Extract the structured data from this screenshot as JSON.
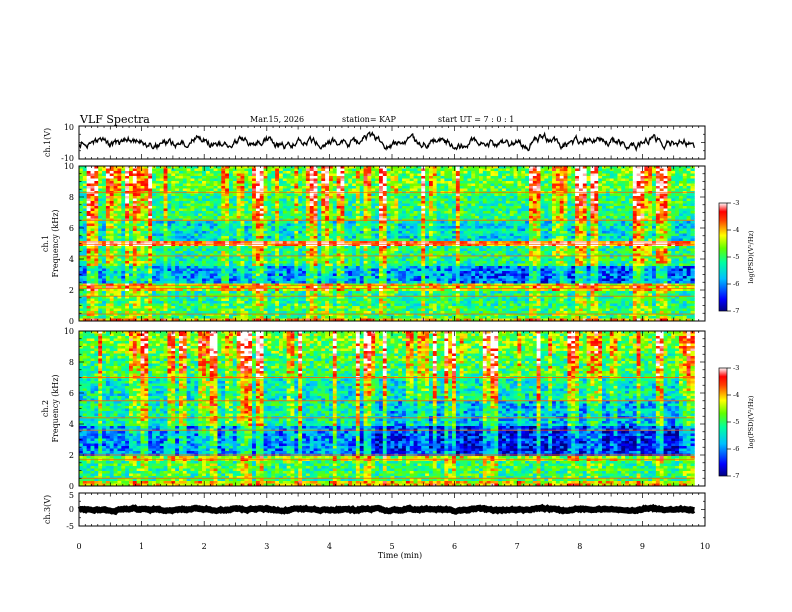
{
  "header": {
    "title": "VLF Spectra",
    "date": "Mar.15, 2026",
    "station": "station= KAP",
    "start_ut": "start  UT =   7 : 0  : 1"
  },
  "colors": {
    "spectrum_scale": [
      "#000080",
      "#0000ff",
      "#0080ff",
      "#00ffff",
      "#00ff80",
      "#80ff00",
      "#ffff00",
      "#ff8000",
      "#ff0000",
      "#ffffff"
    ]
  },
  "chart_data": [
    {
      "type": "line",
      "ylabel": "ch.1(V)",
      "ylim": [
        -10,
        10
      ],
      "yticks": [
        "10",
        "-10"
      ],
      "xlim": [
        0,
        10
      ],
      "trace": {
        "base": 0,
        "amplitude": 4.5,
        "data_end_min": 9.83
      }
    },
    {
      "type": "heatmap",
      "ylabel_top": "ch.1",
      "ylabel": "Frequency (kHz)",
      "ylim": [
        0,
        10
      ],
      "yticks": [
        "0",
        "2",
        "4",
        "6",
        "8",
        "10"
      ],
      "xlim": [
        0,
        10
      ],
      "data_end_min": 9.83,
      "colorbar": {
        "label": "log(PSD)(V²/Hz)",
        "range": [
          -7,
          -3
        ],
        "ticks": [
          "-3",
          "-4",
          "-5",
          "-6",
          "-7"
        ]
      },
      "bands_khz": [
        {
          "from": 0.0,
          "to": 0.2,
          "level": -4.2
        },
        {
          "from": 0.2,
          "to": 1.0,
          "level": -5.0
        },
        {
          "from": 1.0,
          "to": 2.0,
          "level": -5.2
        },
        {
          "from": 2.0,
          "to": 2.4,
          "level": -4.4
        },
        {
          "from": 2.4,
          "to": 3.6,
          "level": -5.9
        },
        {
          "from": 3.6,
          "to": 4.8,
          "level": -5.2
        },
        {
          "from": 4.8,
          "to": 5.2,
          "level": -3.6
        },
        {
          "from": 5.2,
          "to": 6.5,
          "level": -5.5
        },
        {
          "from": 6.5,
          "to": 8.3,
          "level": -5.1
        },
        {
          "from": 8.3,
          "to": 10.0,
          "level": -4.8
        }
      ]
    },
    {
      "type": "heatmap",
      "ylabel_top": "ch.2",
      "ylabel": "Frequency (kHz)",
      "ylim": [
        0,
        10
      ],
      "yticks": [
        "0",
        "2",
        "4",
        "6",
        "8",
        "10"
      ],
      "xlim": [
        0,
        10
      ],
      "data_end_min": 9.83,
      "colorbar": {
        "label": "log(PSD)(V²/Hz)",
        "range": [
          -7,
          -3
        ],
        "ticks": [
          "-3",
          "-4",
          "-5",
          "-6",
          "-7"
        ]
      },
      "bands_khz": [
        {
          "from": 0.0,
          "to": 0.3,
          "level": -4.3
        },
        {
          "from": 0.3,
          "to": 1.6,
          "level": -5.1
        },
        {
          "from": 1.6,
          "to": 2.0,
          "level": -4.6
        },
        {
          "from": 2.0,
          "to": 3.8,
          "level": -6.0
        },
        {
          "from": 3.8,
          "to": 5.5,
          "level": -5.3
        },
        {
          "from": 5.5,
          "to": 7.0,
          "level": -5.4
        },
        {
          "from": 7.0,
          "to": 8.6,
          "level": -5.0
        },
        {
          "from": 8.6,
          "to": 10.0,
          "level": -4.7
        }
      ]
    },
    {
      "type": "line",
      "ylabel": "ch.3(V)",
      "ylim": [
        -5,
        5
      ],
      "yticks": [
        "5",
        "0",
        "-5"
      ],
      "xlim": [
        0,
        10
      ],
      "xlabel": "Time  (min)",
      "xticks": [
        "0",
        "1",
        "2",
        "3",
        "4",
        "5",
        "6",
        "7",
        "8",
        "9",
        "10"
      ],
      "trace": {
        "base": 0,
        "amplitude": 0.5,
        "data_end_min": 9.83
      }
    }
  ]
}
